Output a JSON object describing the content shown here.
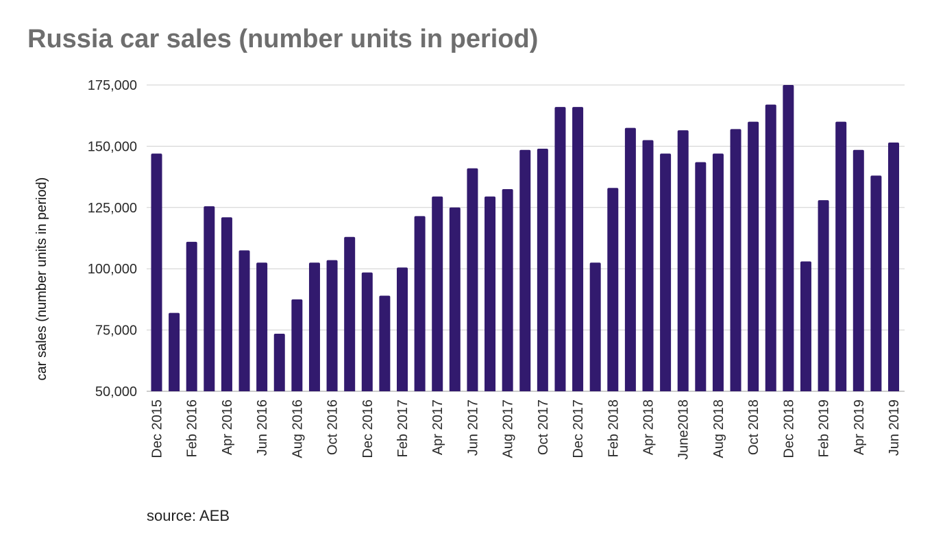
{
  "chart_data": {
    "type": "bar",
    "title": "Russia car sales (number units in period)",
    "ylabel": "car sales (number units in period)",
    "xlabel": "",
    "ylim": [
      50000,
      175000
    ],
    "yticks": [
      50000,
      75000,
      100000,
      125000,
      150000,
      175000
    ],
    "ytick_labels": [
      "50,000",
      "75,000",
      "100,000",
      "125,000",
      "150,000",
      "175,000"
    ],
    "grid": true,
    "bar_color": "#321a6e",
    "categories": [
      "Dec 2015",
      "Jan 2016",
      "Feb 2016",
      "Mar 2016",
      "Apr 2016",
      "May 2016",
      "Jun 2016",
      "Jul 2016",
      "Aug 2016",
      "Sep 2016",
      "Oct 2016",
      "Nov 2016",
      "Dec 2016",
      "Jan 2017",
      "Feb 2017",
      "Mar 2017",
      "Apr 2017",
      "May 2017",
      "Jun 2017",
      "Jul 2017",
      "Aug 2017",
      "Sep 2017",
      "Oct 2017",
      "Nov 2017",
      "Dec 2017",
      "Jan 2018",
      "Feb 2018",
      "Mar 2018",
      "Apr 2018",
      "May 2018",
      "June2018",
      "Jul 2018",
      "Aug 2018",
      "Sep 2018",
      "Oct 2018",
      "Nov 2018",
      "Dec 2018",
      "Jan 2019",
      "Feb 2019",
      "Mar 2019",
      "Apr 2019",
      "May 2019",
      "Jun 2019"
    ],
    "tick_labels": [
      "Dec 2015",
      "",
      "Feb 2016",
      "",
      "Apr 2016",
      "",
      "Jun 2016",
      "",
      "Aug 2016",
      "",
      "Oct 2016",
      "",
      "Dec 2016",
      "",
      "Feb 2017",
      "",
      "Apr 2017",
      "",
      "Jun 2017",
      "",
      "Aug 2017",
      "",
      "Oct 2017",
      "",
      "Dec 2017",
      "",
      "Feb 2018",
      "",
      "Apr 2018",
      "",
      "June2018",
      "",
      "Aug 2018",
      "",
      "Oct 2018",
      "",
      "Dec 2018",
      "",
      "Feb 2019",
      "",
      "Apr 2019",
      "",
      "Jun 2019"
    ],
    "values": [
      147000,
      82000,
      111000,
      125500,
      121000,
      107500,
      102500,
      73500,
      87500,
      102500,
      103500,
      113000,
      98500,
      89000,
      100500,
      121500,
      129500,
      125000,
      141000,
      129500,
      132500,
      148500,
      149000,
      166000,
      166000,
      102500,
      133000,
      157500,
      152500,
      147000,
      156500,
      143500,
      147000,
      157000,
      160000,
      167000,
      175000,
      103000,
      128000,
      160000,
      148500,
      138000,
      151500
    ]
  },
  "source": "source: AEB"
}
